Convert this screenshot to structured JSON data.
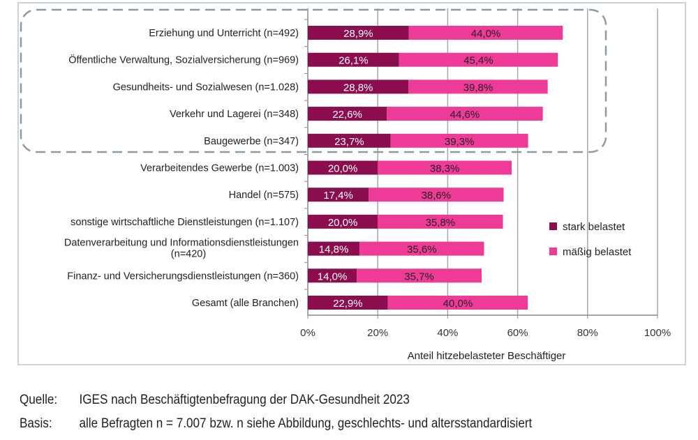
{
  "chart_data": {
    "type": "bar",
    "orientation": "horizontal",
    "stacked": true,
    "categories": [
      "Erziehung und Unterricht (n=492)",
      "Öffentliche Verwaltung, Sozialversicherung (n=969)",
      "Gesundheits- und Sozialwesen (n=1.028)",
      "Verkehr und Lagerei (n=348)",
      "Baugewerbe (n=347)",
      "Verarbeitendes Gewerbe (n=1.003)",
      "Handel (n=575)",
      "sonstige wirtschaftliche Dienstleistungen (n=1.107)",
      "Datenverarbeitung und Informationsdienstleistungen|(n=420)",
      "Finanz- und Versicherungsdienstleistungen (n=360)",
      "Gesamt (alle Branchen)"
    ],
    "series": [
      {
        "name": "stark belastet",
        "color": "#8b0d4d",
        "values": [
          28.9,
          26.1,
          28.8,
          22.6,
          23.7,
          20.0,
          17.4,
          20.0,
          14.8,
          14.0,
          22.9
        ],
        "labels": [
          "28,9%",
          "26,1%",
          "28,8%",
          "22,6%",
          "23,7%",
          "20,0%",
          "17,4%",
          "20,0%",
          "14,8%",
          "14,0%",
          "22,9%"
        ]
      },
      {
        "name": "mäßig belastet",
        "color": "#ee3b97",
        "values": [
          44.0,
          45.4,
          39.8,
          44.6,
          39.3,
          38.3,
          38.6,
          35.8,
          35.6,
          35.7,
          40.0
        ],
        "labels": [
          "44,0%",
          "45,4%",
          "39,8%",
          "44,6%",
          "39,3%",
          "38,3%",
          "38,6%",
          "35,8%",
          "35,6%",
          "35,7%",
          "40,0%"
        ]
      }
    ],
    "xlim": [
      0,
      100
    ],
    "xticks": [
      "0%",
      "20%",
      "40%",
      "60%",
      "80%",
      "100%"
    ],
    "xlabel": "Anteil hitzebelasteter Beschäftiger",
    "grid": true,
    "legend": "right",
    "highlight": "dashed rounded box around first five categories"
  },
  "footer": {
    "source_key": "Quelle:",
    "source_text": "IGES nach Beschäftigtenbefragung der DAK-Gesundheit 2023",
    "basis_key": "Basis:",
    "basis_text": "alle Befragten n = 7.007 bzw. n siehe Abbildung, geschlechts- und altersstandardisiert"
  }
}
